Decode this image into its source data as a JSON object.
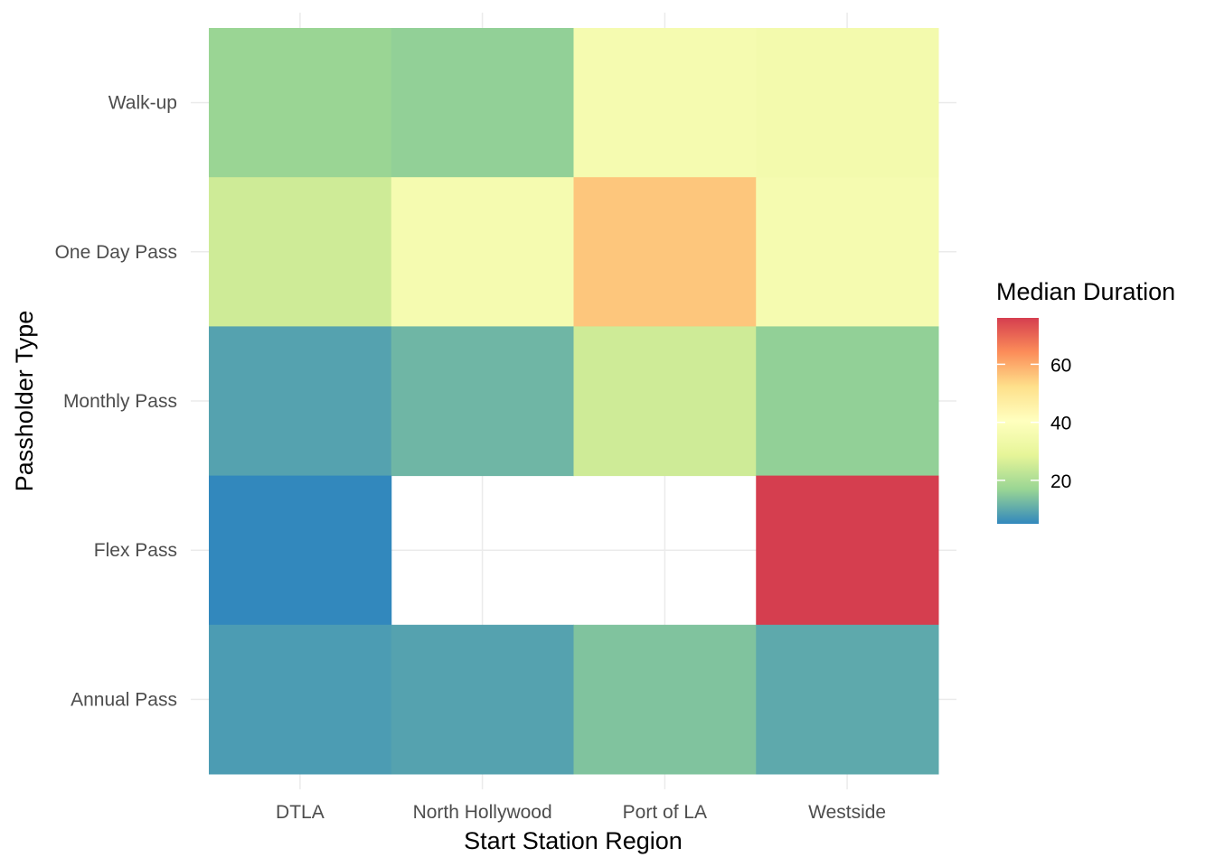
{
  "chart_data": {
    "type": "heatmap",
    "xlabel": "Start Station Region",
    "ylabel": "Passholder Type",
    "x_categories": [
      "DTLA",
      "North Hollywood",
      "Port of LA",
      "Westside"
    ],
    "y_categories": [
      "Walk-up",
      "One Day Pass",
      "Monthly Pass",
      "Flex Pass",
      "Annual Pass"
    ],
    "values": [
      [
        17,
        16,
        36,
        35
      ],
      [
        25,
        36,
        56,
        36
      ],
      [
        9,
        12,
        25,
        16
      ],
      [
        5,
        null,
        null,
        76
      ],
      [
        8,
        9,
        14,
        10
      ]
    ],
    "legend": {
      "title": "Median Duration",
      "ticks": [
        20,
        40,
        60
      ],
      "range": [
        5,
        76
      ],
      "palette": [
        "#3288BD",
        "#99D594",
        "#E6F598",
        "#FFFFBF",
        "#FEE08B",
        "#FC8D59",
        "#D53E4F"
      ],
      "position": "right"
    },
    "grid": true
  }
}
